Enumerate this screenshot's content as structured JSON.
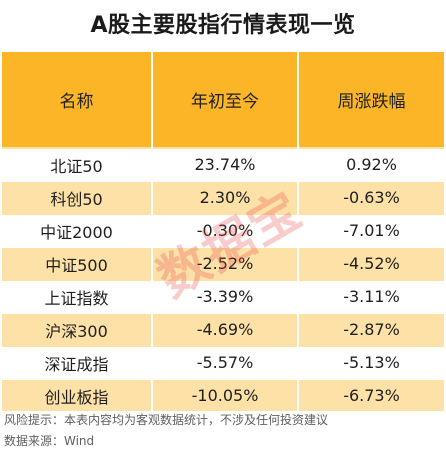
{
  "title": "A股主要股指行情表现一览",
  "table": {
    "headers": [
      "名称",
      "年初至今",
      "周涨跌幅"
    ],
    "rows": [
      [
        "北证50",
        "23.74%",
        "0.92%"
      ],
      [
        "科创50",
        "2.30%",
        "-0.63%"
      ],
      [
        "中证2000",
        "-0.30%",
        "-7.01%"
      ],
      [
        "中证500",
        "-2.52%",
        "-4.52%"
      ],
      [
        "上证指数",
        "-3.39%",
        "-3.11%"
      ],
      [
        "沪深300",
        "-4.69%",
        "-2.87%"
      ],
      [
        "深证成指",
        "-5.57%",
        "-5.13%"
      ],
      [
        "创业板指",
        "-10.05%",
        "-6.73%"
      ]
    ]
  },
  "footer": {
    "risk_note": "风险提示：本表内容均为客观数据统计，不涉及任何投资建议",
    "source": "数据来源：Wind"
  },
  "watermark": "数据宝",
  "colors": {
    "header_bg": "#fbb526",
    "stripe_bg": "#fde1a6",
    "watermark": "#eb4848"
  }
}
